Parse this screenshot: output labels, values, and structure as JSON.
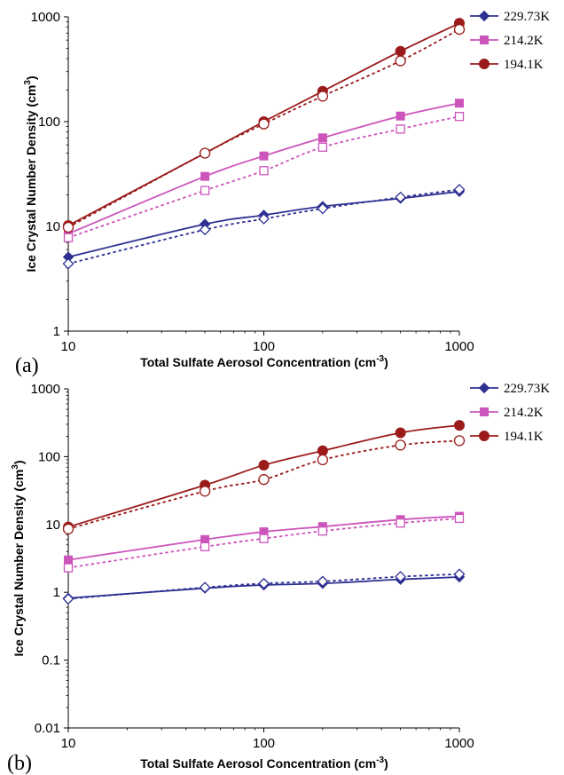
{
  "chart_data": [
    {
      "type": "line",
      "panel_label": "(a)",
      "xlabel": "Total Sulfate Aerosol Concentration (cm",
      "xlabel_sup": "-3",
      "xlabel_end": ")",
      "ylabel": "Ice Crystal Number Density (cm",
      "ylabel_sup": "3",
      "ylabel_end": ")",
      "xscale": "log",
      "yscale": "log",
      "xlim": [
        10,
        1000
      ],
      "ylim": [
        1,
        1000
      ],
      "x_ticks": [
        10,
        100,
        1000
      ],
      "x_tick_labels": [
        "10",
        "100",
        "1000"
      ],
      "y_ticks": [
        1,
        10,
        100,
        1000
      ],
      "y_tick_labels": [
        "1",
        "10",
        "100",
        "1000"
      ],
      "grid": false,
      "legend_position": "top-right",
      "x": [
        10,
        50,
        100,
        200,
        500,
        1000
      ],
      "series": [
        {
          "name": "229.73K",
          "color": "#2e3192",
          "marker": "diamond",
          "style": "solid",
          "values": [
            5.1,
            10.5,
            12.8,
            15.5,
            18.5,
            21.5
          ]
        },
        {
          "name": "",
          "color": "#2e3192",
          "marker": "diamond-open",
          "style": "dashed",
          "values": [
            4.4,
            9.3,
            11.8,
            14.8,
            19.0,
            22.5
          ]
        },
        {
          "name": "214.2K",
          "color": "#cc55bb",
          "marker": "square",
          "style": "solid",
          "values": [
            8.5,
            30,
            47,
            70,
            113,
            150
          ]
        },
        {
          "name": "",
          "color": "#cc55bb",
          "marker": "square-open",
          "style": "dashed",
          "values": [
            7.8,
            22,
            34,
            57,
            85,
            112
          ]
        },
        {
          "name": "194.1K",
          "color": "#9b1b1b",
          "marker": "circle",
          "style": "solid",
          "values": [
            10.2,
            50,
            100,
            195,
            470,
            870
          ]
        },
        {
          "name": "",
          "color": "#9b1b1b",
          "marker": "circle-open",
          "style": "dashed",
          "values": [
            9.8,
            50,
            95,
            175,
            380,
            760
          ]
        }
      ]
    },
    {
      "type": "line",
      "panel_label": "(b)",
      "xlabel": "Total Sulfate Aerosol Concentration (cm",
      "xlabel_sup": "-3",
      "xlabel_end": ")",
      "ylabel": "Ice Crystal Number Density (cm",
      "ylabel_sup": "3",
      "ylabel_end": ")",
      "xscale": "log",
      "yscale": "log",
      "xlim": [
        10,
        1000
      ],
      "ylim": [
        0.01,
        1000
      ],
      "x_ticks": [
        10,
        100,
        1000
      ],
      "x_tick_labels": [
        "10",
        "100",
        "1000"
      ],
      "y_ticks": [
        0.01,
        0.1,
        1,
        10,
        100,
        1000
      ],
      "y_tick_labels": [
        "0.01",
        "0.1",
        "1",
        "10",
        "100",
        "1000"
      ],
      "grid": false,
      "legend_position": "top-right",
      "x": [
        10,
        50,
        100,
        200,
        500,
        1000
      ],
      "series": [
        {
          "name": "229.73K",
          "color": "#2e3192",
          "marker": "diamond",
          "style": "solid",
          "values": [
            0.82,
            1.15,
            1.28,
            1.35,
            1.55,
            1.68
          ]
        },
        {
          "name": "",
          "color": "#2e3192",
          "marker": "diamond-open",
          "style": "dashed",
          "values": [
            0.8,
            1.18,
            1.35,
            1.45,
            1.7,
            1.85
          ]
        },
        {
          "name": "214.2K",
          "color": "#cc55bb",
          "marker": "square",
          "style": "solid",
          "values": [
            3.0,
            6.0,
            7.8,
            9.3,
            11.8,
            13.2
          ]
        },
        {
          "name": "",
          "color": "#cc55bb",
          "marker": "square-open",
          "style": "dashed",
          "values": [
            2.3,
            4.7,
            6.2,
            8.0,
            10.5,
            12.3
          ]
        },
        {
          "name": "194.1K",
          "color": "#9b1b1b",
          "marker": "circle",
          "style": "solid",
          "values": [
            9.2,
            38,
            75,
            122,
            225,
            290
          ]
        },
        {
          "name": "",
          "color": "#9b1b1b",
          "marker": "circle-open",
          "style": "dashed",
          "values": [
            8.6,
            31,
            46,
            90,
            148,
            172
          ]
        }
      ]
    }
  ]
}
